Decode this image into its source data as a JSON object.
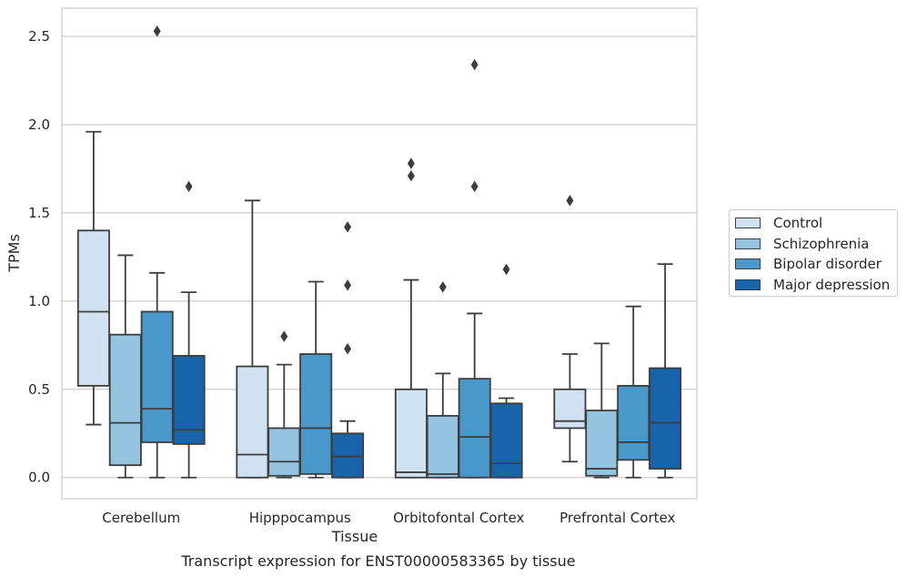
{
  "chart_data": {
    "type": "box",
    "xlabel": "Tissue",
    "ylabel": "TPMs",
    "caption": "Transcript expression for ENST00000583365 by tissue",
    "ylim": [
      -0.12,
      2.66
    ],
    "yticks": [
      "0.0",
      "0.5",
      "1.0",
      "1.5",
      "2.0",
      "2.5"
    ],
    "grid": "horizontal",
    "legend_position": "right",
    "categories": [
      "Cerebellum",
      "Hipppocampus",
      "Orbitofontal Cortex",
      "Prefrontal Cortex"
    ],
    "series": [
      {
        "name": "Control",
        "color": "#d0e1f2",
        "boxes": [
          {
            "whislo": 0.3,
            "q1": 0.52,
            "med": 0.94,
            "q3": 1.4,
            "whishi": 1.96,
            "fliers": []
          },
          {
            "whislo": 0.0,
            "q1": 0.0,
            "med": 0.13,
            "q3": 0.63,
            "whishi": 1.57,
            "fliers": []
          },
          {
            "whislo": 0.0,
            "q1": 0.0,
            "med": 0.03,
            "q3": 0.5,
            "whishi": 1.12,
            "fliers": [
              1.71,
              1.78
            ]
          },
          {
            "whislo": 0.09,
            "q1": 0.28,
            "med": 0.32,
            "q3": 0.5,
            "whishi": 0.7,
            "fliers": [
              1.57
            ]
          }
        ]
      },
      {
        "name": "Schizophrenia",
        "color": "#94c4df",
        "boxes": [
          {
            "whislo": 0.0,
            "q1": 0.07,
            "med": 0.31,
            "q3": 0.81,
            "whishi": 1.26,
            "fliers": []
          },
          {
            "whislo": 0.0,
            "q1": 0.01,
            "med": 0.09,
            "q3": 0.28,
            "whishi": 0.64,
            "fliers": [
              0.8
            ]
          },
          {
            "whislo": 0.0,
            "q1": 0.0,
            "med": 0.02,
            "q3": 0.35,
            "whishi": 0.59,
            "fliers": [
              1.08
            ]
          },
          {
            "whislo": 0.0,
            "q1": 0.01,
            "med": 0.05,
            "q3": 0.38,
            "whishi": 0.76,
            "fliers": []
          }
        ]
      },
      {
        "name": "Bipolar disorder",
        "color": "#4a98c9",
        "boxes": [
          {
            "whislo": 0.0,
            "q1": 0.2,
            "med": 0.39,
            "q3": 0.94,
            "whishi": 1.16,
            "fliers": [
              2.53
            ]
          },
          {
            "whislo": 0.0,
            "q1": 0.02,
            "med": 0.28,
            "q3": 0.7,
            "whishi": 1.11,
            "fliers": []
          },
          {
            "whislo": 0.0,
            "q1": 0.0,
            "med": 0.23,
            "q3": 0.56,
            "whishi": 0.93,
            "fliers": [
              1.65,
              2.34
            ]
          },
          {
            "whislo": 0.0,
            "q1": 0.1,
            "med": 0.2,
            "q3": 0.52,
            "whishi": 0.97,
            "fliers": []
          }
        ]
      },
      {
        "name": "Major depression",
        "color": "#1764ab",
        "boxes": [
          {
            "whislo": 0.0,
            "q1": 0.19,
            "med": 0.27,
            "q3": 0.69,
            "whishi": 1.05,
            "fliers": [
              1.65
            ]
          },
          {
            "whislo": 0.0,
            "q1": 0.0,
            "med": 0.12,
            "q3": 0.25,
            "whishi": 0.32,
            "fliers": [
              0.73,
              1.09,
              1.42
            ]
          },
          {
            "whislo": 0.0,
            "q1": 0.0,
            "med": 0.08,
            "q3": 0.42,
            "whishi": 0.45,
            "fliers": [
              1.18
            ]
          },
          {
            "whislo": 0.0,
            "q1": 0.05,
            "med": 0.31,
            "q3": 0.62,
            "whishi": 1.21,
            "fliers": []
          }
        ]
      }
    ]
  }
}
